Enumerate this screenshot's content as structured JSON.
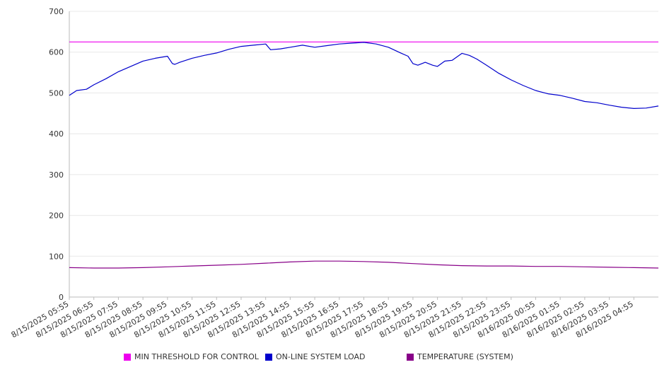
{
  "chart_data": {
    "type": "line",
    "title": "",
    "xlabel": "",
    "ylabel": "",
    "ylim": [
      0,
      700
    ],
    "yticks": [
      0,
      100,
      200,
      300,
      400,
      500,
      600,
      700
    ],
    "grid": true,
    "legend_position": "bottom",
    "categories": [
      "8/15/2025 05:55",
      "8/15/2025 06:55",
      "8/15/2025 07:55",
      "8/15/2025 08:55",
      "8/15/2025 09:55",
      "8/15/2025 10:55",
      "8/15/2025 11:55",
      "8/15/2025 12:55",
      "8/15/2025 13:55",
      "8/15/2025 14:55",
      "8/15/2025 15:55",
      "8/15/2025 16:55",
      "8/15/2025 17:55",
      "8/15/2025 18:55",
      "8/15/2025 19:55",
      "8/15/2025 20:55",
      "8/15/2025 21:55",
      "8/15/2025 22:55",
      "8/15/2025 23:55",
      "8/16/2025 00:55",
      "8/16/2025 01:55",
      "8/16/2025 02:55",
      "8/16/2025 03:55",
      "8/16/2025 04:55"
    ],
    "series": [
      {
        "name": "MIN THRESHOLD FOR CONTROL",
        "color": "#ee00ee",
        "x": [
          0,
          24
        ],
        "values": [
          625,
          625
        ]
      },
      {
        "name": "ON-LINE SYSTEM LOAD",
        "color": "#0000cc",
        "x": [
          0,
          0.3,
          0.7,
          1.0,
          1.5,
          2.0,
          2.5,
          3.0,
          3.5,
          4.0,
          4.2,
          4.3,
          4.5,
          5.0,
          5.5,
          6.0,
          6.5,
          7.0,
          7.5,
          8.0,
          8.2,
          8.6,
          9.0,
          9.5,
          10.0,
          10.5,
          11.0,
          11.5,
          12.0,
          12.5,
          13.0,
          13.5,
          13.8,
          14.0,
          14.2,
          14.5,
          14.8,
          15.0,
          15.3,
          15.6,
          16.0,
          16.3,
          16.6,
          17.0,
          17.5,
          18.0,
          18.5,
          19.0,
          19.5,
          20.0,
          20.5,
          21.0,
          21.5,
          22.0,
          22.5,
          23.0,
          23.5,
          24.0
        ],
        "values": [
          494,
          506,
          509,
          520,
          535,
          552,
          565,
          578,
          585,
          590,
          572,
          570,
          575,
          585,
          592,
          598,
          607,
          614,
          617,
          620,
          606,
          608,
          612,
          617,
          612,
          616,
          620,
          622,
          624,
          620,
          612,
          598,
          590,
          572,
          568,
          575,
          568,
          565,
          578,
          580,
          597,
          592,
          583,
          568,
          548,
          532,
          518,
          506,
          498,
          494,
          487,
          479,
          476,
          470,
          465,
          462,
          463,
          468
        ]
      },
      {
        "name": "TEMPERATURE (SYSTEM)",
        "color": "#880088",
        "x": [
          0,
          1,
          2,
          3,
          4,
          5,
          6,
          7,
          8,
          9,
          10,
          11,
          12,
          13,
          14,
          15,
          16,
          17,
          18,
          19,
          20,
          21,
          22,
          23,
          24
        ],
        "values": [
          72,
          71,
          71,
          72,
          74,
          76,
          78,
          80,
          83,
          86,
          88,
          88,
          87,
          85,
          82,
          79,
          77,
          76,
          76,
          75,
          75,
          74,
          73,
          72,
          71
        ]
      }
    ]
  }
}
